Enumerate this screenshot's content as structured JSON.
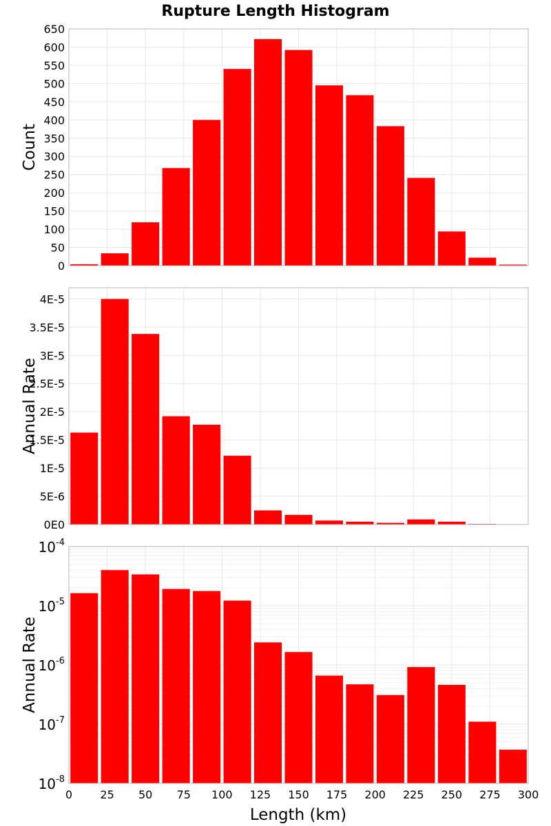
{
  "title": "Rupture Length Histogram",
  "colors": {
    "bar": "#ff0000",
    "grid": "#e6e6e6",
    "frame": "#b5b5b5"
  },
  "x_axis": {
    "label": "Length (km)",
    "range": [
      0,
      300
    ],
    "ticks": [
      0,
      25,
      50,
      75,
      100,
      125,
      150,
      175,
      200,
      225,
      250,
      275,
      300
    ],
    "tick_labels": [
      "0",
      "25",
      "50",
      "75",
      "100",
      "125",
      "150",
      "175",
      "200",
      "225",
      "250",
      "275",
      "300"
    ]
  },
  "chart_data": [
    {
      "type": "bar",
      "name": "count",
      "title": "Rupture Length Histogram",
      "xlabel": "",
      "ylabel": "Count",
      "xlim": [
        0,
        300
      ],
      "ylim": [
        0,
        650
      ],
      "scale": "linear",
      "grid": true,
      "bin_width": 20,
      "x": [
        10,
        30,
        50,
        70,
        90,
        110,
        130,
        150,
        170,
        190,
        210,
        230,
        250,
        270,
        290
      ],
      "values": [
        4,
        34,
        119,
        268,
        400,
        540,
        622,
        592,
        495,
        468,
        383,
        241,
        94,
        22,
        3
      ],
      "y_ticks": [
        0,
        50,
        100,
        150,
        200,
        250,
        300,
        350,
        400,
        450,
        500,
        550,
        600,
        650
      ],
      "y_tick_labels": [
        "0",
        "50",
        "100",
        "150",
        "200",
        "250",
        "300",
        "350",
        "400",
        "450",
        "500",
        "550",
        "600",
        "650"
      ]
    },
    {
      "type": "bar",
      "name": "rate-linear",
      "xlabel": "",
      "ylabel": "Annual Rate",
      "xlim": [
        0,
        300
      ],
      "ylim": [
        0,
        4.2e-05
      ],
      "scale": "linear",
      "grid": true,
      "bin_width": 20,
      "x": [
        10,
        30,
        50,
        70,
        90,
        110,
        130,
        150,
        170,
        190,
        210,
        230,
        250,
        270,
        290
      ],
      "values": [
        1.63e-05,
        4e-05,
        3.38e-05,
        1.92e-05,
        1.77e-05,
        1.22e-05,
        2.5e-06,
        1.7e-06,
        7e-07,
        5e-07,
        3e-07,
        9e-07,
        5e-07,
        1e-07,
        4e-08
      ],
      "y_ticks": [
        0,
        5e-06,
        1e-05,
        1.5e-05,
        2e-05,
        2.5e-05,
        3e-05,
        3.5e-05,
        4e-05
      ],
      "y_tick_labels": [
        "0E0",
        "5E-6",
        "1E-5",
        "1.5E-5",
        "2E-5",
        "2.5E-5",
        "3E-5",
        "3.5E-5",
        "4E-5"
      ]
    },
    {
      "type": "bar",
      "name": "rate-log",
      "xlabel": "Length (km)",
      "ylabel": "Annual Rate",
      "xlim": [
        0,
        300
      ],
      "ylim": [
        1e-08,
        0.0001
      ],
      "scale": "log",
      "grid": true,
      "bin_width": 20,
      "x": [
        10,
        30,
        50,
        70,
        90,
        110,
        130,
        150,
        170,
        190,
        210,
        230,
        250,
        270,
        290
      ],
      "values": [
        1.63e-05,
        4e-05,
        3.38e-05,
        1.92e-05,
        1.77e-05,
        1.22e-05,
        2.4e-06,
        1.65e-06,
        6.6e-07,
        4.7e-07,
        3.1e-07,
        9.2e-07,
        4.6e-07,
        1.1e-07,
        3.7e-08
      ],
      "y_ticks": [
        1e-08,
        1e-07,
        1e-06,
        1e-05,
        0.0001
      ],
      "y_tick_labels": [
        {
          "base": "10",
          "exp": "-8"
        },
        {
          "base": "10",
          "exp": "-7"
        },
        {
          "base": "10",
          "exp": "-6"
        },
        {
          "base": "10",
          "exp": "-5"
        },
        {
          "base": "10",
          "exp": "-4"
        }
      ]
    }
  ]
}
